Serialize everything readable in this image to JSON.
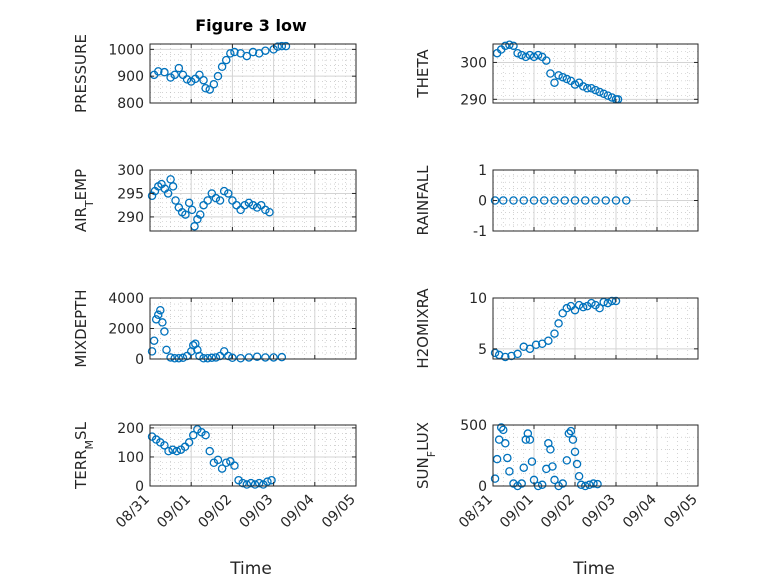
{
  "figure": {
    "title": "Figure 3 low",
    "marker_color": "#0072BD",
    "x_tick_labels": [
      "08/31",
      "09/01",
      "09/02",
      "09/03",
      "09/04",
      "09/05"
    ],
    "x_label": "Time"
  },
  "chart_data": [
    {
      "type": "scatter",
      "ylabel": "PRESSURE",
      "ylim": [
        800,
        1020
      ],
      "yticks": [
        800,
        900,
        1000
      ],
      "grid": true,
      "x_range_days": [
        "08/31",
        "09/05"
      ],
      "points": [
        [
          0.1,
          905
        ],
        [
          0.2,
          918
        ],
        [
          0.35,
          915
        ],
        [
          0.5,
          895
        ],
        [
          0.6,
          905
        ],
        [
          0.7,
          930
        ],
        [
          0.8,
          905
        ],
        [
          0.9,
          888
        ],
        [
          1.0,
          880
        ],
        [
          1.1,
          890
        ],
        [
          1.2,
          905
        ],
        [
          1.3,
          885
        ],
        [
          1.35,
          855
        ],
        [
          1.45,
          850
        ],
        [
          1.55,
          870
        ],
        [
          1.65,
          900
        ],
        [
          1.75,
          935
        ],
        [
          1.85,
          960
        ],
        [
          1.95,
          985
        ],
        [
          2.05,
          990
        ],
        [
          2.2,
          985
        ],
        [
          2.35,
          975
        ],
        [
          2.5,
          990
        ],
        [
          2.65,
          985
        ],
        [
          2.8,
          995
        ],
        [
          3.0,
          1000
        ],
        [
          3.1,
          1010
        ],
        [
          3.2,
          1012
        ],
        [
          3.3,
          1012
        ]
      ]
    },
    {
      "type": "scatter",
      "ylabel": "THETA",
      "ylim": [
        289,
        305
      ],
      "yticks": [
        290,
        300
      ],
      "grid": true,
      "x_range_days": [
        "08/31",
        "09/05"
      ],
      "points": [
        [
          0.1,
          302.5
        ],
        [
          0.2,
          303.5
        ],
        [
          0.3,
          304.5
        ],
        [
          0.4,
          304.8
        ],
        [
          0.5,
          304.5
        ],
        [
          0.6,
          302.5
        ],
        [
          0.7,
          302
        ],
        [
          0.8,
          301.5
        ],
        [
          0.9,
          302
        ],
        [
          1.0,
          301.5
        ],
        [
          1.1,
          302
        ],
        [
          1.2,
          301.5
        ],
        [
          1.3,
          300.5
        ],
        [
          1.4,
          297
        ],
        [
          1.5,
          294.5
        ],
        [
          1.6,
          296.5
        ],
        [
          1.7,
          296
        ],
        [
          1.8,
          295.5
        ],
        [
          1.9,
          295
        ],
        [
          2.0,
          294
        ],
        [
          2.1,
          294.5
        ],
        [
          2.2,
          293.5
        ],
        [
          2.3,
          293
        ],
        [
          2.4,
          293
        ],
        [
          2.5,
          292.5
        ],
        [
          2.6,
          292
        ],
        [
          2.7,
          291.5
        ],
        [
          2.8,
          291
        ],
        [
          2.9,
          290.5
        ],
        [
          3.0,
          290
        ],
        [
          3.05,
          290
        ]
      ]
    },
    {
      "type": "scatter",
      "ylabel": "AIR_TEMP",
      "ylim": [
        287,
        300
      ],
      "yticks": [
        290,
        295,
        300
      ],
      "grid": true,
      "x_range_days": [
        "08/31",
        "09/05"
      ],
      "points": [
        [
          0.05,
          294.5
        ],
        [
          0.12,
          295.5
        ],
        [
          0.2,
          296.5
        ],
        [
          0.28,
          297
        ],
        [
          0.36,
          296
        ],
        [
          0.44,
          295
        ],
        [
          0.5,
          298
        ],
        [
          0.56,
          296.5
        ],
        [
          0.62,
          293.5
        ],
        [
          0.7,
          292
        ],
        [
          0.78,
          291
        ],
        [
          0.86,
          290.5
        ],
        [
          0.95,
          293
        ],
        [
          1.02,
          291.5
        ],
        [
          1.08,
          288
        ],
        [
          1.15,
          289.5
        ],
        [
          1.22,
          290.5
        ],
        [
          1.3,
          292.5
        ],
        [
          1.4,
          293.5
        ],
        [
          1.5,
          295
        ],
        [
          1.6,
          294
        ],
        [
          1.7,
          293.5
        ],
        [
          1.8,
          295.5
        ],
        [
          1.9,
          295
        ],
        [
          2.0,
          293.5
        ],
        [
          2.1,
          292.5
        ],
        [
          2.2,
          291.5
        ],
        [
          2.3,
          292.5
        ],
        [
          2.4,
          293
        ],
        [
          2.5,
          292.5
        ],
        [
          2.6,
          292
        ],
        [
          2.7,
          292.5
        ],
        [
          2.8,
          291.5
        ],
        [
          2.9,
          291
        ]
      ]
    },
    {
      "type": "scatter",
      "ylabel": "RAINFALL",
      "ylim": [
        -1,
        1
      ],
      "yticks": [
        -1,
        0,
        1
      ],
      "grid": true,
      "x_range_days": [
        "08/31",
        "09/05"
      ],
      "points": [
        [
          0.05,
          0
        ],
        [
          0.25,
          0
        ],
        [
          0.5,
          0
        ],
        [
          0.75,
          0
        ],
        [
          1.0,
          0
        ],
        [
          1.25,
          0
        ],
        [
          1.5,
          0
        ],
        [
          1.75,
          0
        ],
        [
          2.0,
          0
        ],
        [
          2.25,
          0
        ],
        [
          2.5,
          0
        ],
        [
          2.75,
          0
        ],
        [
          3.0,
          0
        ],
        [
          3.25,
          0
        ]
      ]
    },
    {
      "type": "scatter",
      "ylabel": "MIXDEPTH",
      "ylim": [
        0,
        4000
      ],
      "yticks": [
        0,
        2000,
        4000
      ],
      "grid": true,
      "x_range_days": [
        "08/31",
        "09/05"
      ],
      "points": [
        [
          0.05,
          500
        ],
        [
          0.1,
          1200
        ],
        [
          0.15,
          2600
        ],
        [
          0.2,
          2900
        ],
        [
          0.25,
          3200
        ],
        [
          0.3,
          2400
        ],
        [
          0.35,
          1800
        ],
        [
          0.4,
          600
        ],
        [
          0.5,
          100
        ],
        [
          0.6,
          50
        ],
        [
          0.7,
          50
        ],
        [
          0.8,
          80
        ],
        [
          0.9,
          200
        ],
        [
          1.0,
          500
        ],
        [
          1.05,
          900
        ],
        [
          1.1,
          1000
        ],
        [
          1.15,
          600
        ],
        [
          1.2,
          200
        ],
        [
          1.3,
          50
        ],
        [
          1.4,
          50
        ],
        [
          1.5,
          80
        ],
        [
          1.6,
          100
        ],
        [
          1.7,
          200
        ],
        [
          1.8,
          500
        ],
        [
          1.9,
          200
        ],
        [
          2.0,
          80
        ],
        [
          2.2,
          50
        ],
        [
          2.4,
          100
        ],
        [
          2.6,
          150
        ],
        [
          2.8,
          100
        ],
        [
          3.0,
          100
        ],
        [
          3.2,
          120
        ]
      ]
    },
    {
      "type": "scatter",
      "ylabel": "H2OMIXRA",
      "ylim": [
        4,
        10
      ],
      "yticks": [
        5,
        10
      ],
      "grid": true,
      "x_range_days": [
        "08/31",
        "09/05"
      ],
      "points": [
        [
          0.05,
          4.6
        ],
        [
          0.15,
          4.4
        ],
        [
          0.3,
          4.2
        ],
        [
          0.45,
          4.3
        ],
        [
          0.6,
          4.5
        ],
        [
          0.75,
          5.2
        ],
        [
          0.9,
          5.0
        ],
        [
          1.05,
          5.4
        ],
        [
          1.2,
          5.5
        ],
        [
          1.35,
          5.8
        ],
        [
          1.5,
          6.5
        ],
        [
          1.6,
          7.5
        ],
        [
          1.7,
          8.5
        ],
        [
          1.8,
          9.0
        ],
        [
          1.9,
          9.2
        ],
        [
          2.0,
          8.8
        ],
        [
          2.1,
          9.3
        ],
        [
          2.2,
          9.1
        ],
        [
          2.3,
          9.2
        ],
        [
          2.4,
          9.5
        ],
        [
          2.5,
          9.3
        ],
        [
          2.6,
          9.0
        ],
        [
          2.7,
          9.6
        ],
        [
          2.8,
          9.5
        ],
        [
          2.9,
          9.7
        ],
        [
          3.0,
          9.7
        ]
      ]
    },
    {
      "type": "scatter",
      "ylabel": "TERR_MSL",
      "ylim": [
        0,
        210
      ],
      "yticks": [
        0,
        100,
        200
      ],
      "grid": true,
      "x_range_days": [
        "08/31",
        "09/05"
      ],
      "points": [
        [
          0.05,
          170
        ],
        [
          0.15,
          160
        ],
        [
          0.25,
          150
        ],
        [
          0.35,
          140
        ],
        [
          0.45,
          120
        ],
        [
          0.55,
          125
        ],
        [
          0.65,
          120
        ],
        [
          0.75,
          125
        ],
        [
          0.85,
          135
        ],
        [
          0.95,
          150
        ],
        [
          1.05,
          175
        ],
        [
          1.15,
          195
        ],
        [
          1.25,
          185
        ],
        [
          1.35,
          175
        ],
        [
          1.45,
          120
        ],
        [
          1.55,
          80
        ],
        [
          1.65,
          90
        ],
        [
          1.75,
          60
        ],
        [
          1.85,
          80
        ],
        [
          1.95,
          85
        ],
        [
          2.05,
          70
        ],
        [
          2.15,
          20
        ],
        [
          2.25,
          10
        ],
        [
          2.35,
          5
        ],
        [
          2.45,
          10
        ],
        [
          2.55,
          5
        ],
        [
          2.65,
          10
        ],
        [
          2.75,
          5
        ],
        [
          2.85,
          15
        ],
        [
          2.95,
          20
        ]
      ]
    },
    {
      "type": "scatter",
      "ylabel": "SUN_FLUX",
      "ylim": [
        0,
        500
      ],
      "yticks": [
        0,
        500
      ],
      "grid": true,
      "x_range_days": [
        "08/31",
        "09/05"
      ],
      "points": [
        [
          0.05,
          60
        ],
        [
          0.1,
          220
        ],
        [
          0.15,
          380
        ],
        [
          0.2,
          480
        ],
        [
          0.25,
          460
        ],
        [
          0.3,
          350
        ],
        [
          0.35,
          230
        ],
        [
          0.4,
          120
        ],
        [
          0.5,
          20
        ],
        [
          0.6,
          0
        ],
        [
          0.7,
          20
        ],
        [
          0.75,
          150
        ],
        [
          0.8,
          380
        ],
        [
          0.85,
          430
        ],
        [
          0.9,
          380
        ],
        [
          0.95,
          200
        ],
        [
          1.0,
          50
        ],
        [
          1.1,
          0
        ],
        [
          1.2,
          10
        ],
        [
          1.3,
          140
        ],
        [
          1.35,
          350
        ],
        [
          1.4,
          300
        ],
        [
          1.45,
          160
        ],
        [
          1.5,
          50
        ],
        [
          1.6,
          0
        ],
        [
          1.7,
          20
        ],
        [
          1.8,
          210
        ],
        [
          1.85,
          430
        ],
        [
          1.9,
          450
        ],
        [
          1.95,
          380
        ],
        [
          2.0,
          280
        ],
        [
          2.05,
          180
        ],
        [
          2.1,
          80
        ],
        [
          2.15,
          10
        ],
        [
          2.25,
          0
        ],
        [
          2.35,
          10
        ],
        [
          2.45,
          20
        ],
        [
          2.55,
          15
        ]
      ]
    }
  ]
}
